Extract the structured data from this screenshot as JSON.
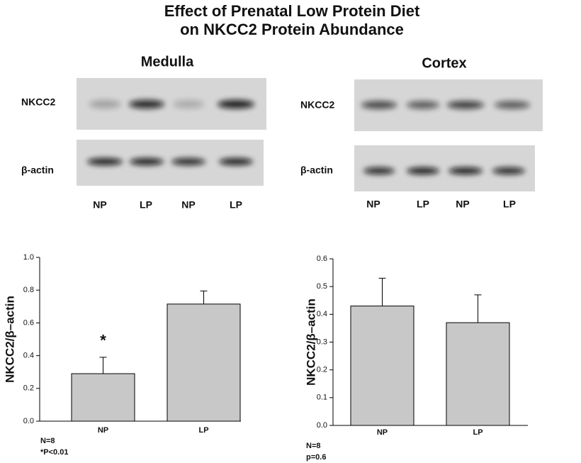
{
  "title": [
    "Effect of Prenatal Low Protein Diet",
    "on NKCC2 Protein Abundance"
  ],
  "blots": [
    {
      "title": "Medulla",
      "rows": [
        "NKCC2",
        "β-actin"
      ],
      "lanes": [
        "NP",
        "LP",
        "NP",
        "LP"
      ]
    },
    {
      "title": "Cortex",
      "rows": [
        "NKCC2",
        "β-actin"
      ],
      "lanes": [
        "NP",
        "LP",
        "NP",
        "LP"
      ]
    }
  ],
  "chart_data": [
    {
      "type": "bar",
      "ylabel": "NKCC2/β–actin",
      "categories": [
        "NP",
        "LP"
      ],
      "values": [
        0.29,
        0.715
      ],
      "errors": [
        0.1,
        0.08
      ],
      "color": "#c8c8c8",
      "ylim": [
        0,
        1
      ],
      "yticks": [
        {
          "value": 0,
          "label": "0.0"
        },
        {
          "value": 0.2,
          "label": "0.2"
        },
        {
          "value": 0.4,
          "label": "0.4"
        },
        {
          "value": 0.6,
          "label": "0.6"
        },
        {
          "value": 0.8,
          "label": "0.8"
        },
        {
          "value": 1,
          "label": "1.0"
        }
      ],
      "annotations": [
        "*"
      ],
      "notes": [
        "N=8",
        "*P<0.01"
      ]
    },
    {
      "type": "bar",
      "ylabel": "NKCC2/β–actin",
      "categories": [
        "NP",
        "LP"
      ],
      "values": [
        0.43,
        0.37
      ],
      "errors": [
        0.1,
        0.1
      ],
      "color": "#c8c8c8",
      "ylim": [
        0,
        0.6
      ],
      "yticks": [
        {
          "value": 0,
          "label": "0.0"
        },
        {
          "value": 0.1,
          "label": "0.1"
        },
        {
          "value": 0.2,
          "label": "0.2"
        },
        {
          "value": 0.3,
          "label": "0.3"
        },
        {
          "value": 0.4,
          "label": "0.4"
        },
        {
          "value": 0.5,
          "label": "0.5"
        },
        {
          "value": 0.6,
          "label": "0.6"
        }
      ],
      "notes": [
        "N=8",
        "p=0.6"
      ]
    }
  ]
}
